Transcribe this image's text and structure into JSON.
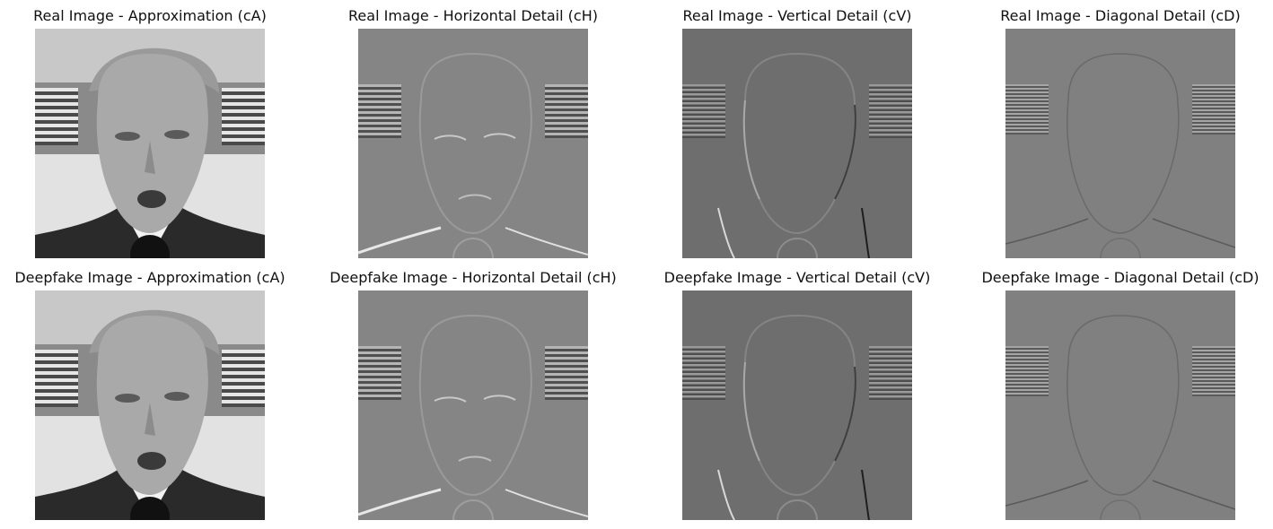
{
  "figure": {
    "rows": [
      {
        "name": "real",
        "panels": [
          {
            "title": "Real Image - Approximation (cA)",
            "kind": "approx"
          },
          {
            "title": "Real Image - Horizontal Detail (cH)",
            "kind": "horizontal"
          },
          {
            "title": "Real Image - Vertical Detail (cV)",
            "kind": "vertical"
          },
          {
            "title": "Real Image - Diagonal Detail (cD)",
            "kind": "diagonal"
          }
        ]
      },
      {
        "name": "deepfake",
        "panels": [
          {
            "title": "Deepfake Image - Approximation (cA)",
            "kind": "approx"
          },
          {
            "title": "Deepfake Image - Horizontal Detail (cH)",
            "kind": "horizontal"
          },
          {
            "title": "Deepfake Image - Vertical Detail (cV)",
            "kind": "vertical"
          },
          {
            "title": "Deepfake Image - Diagonal Detail (cD)",
            "kind": "diagonal"
          }
        ]
      }
    ],
    "colors": {
      "approx_bg": "#d9d9d9",
      "horizontal_bg": "#858585",
      "vertical_bg": "#6e6e6e",
      "diagonal_bg": "#808080"
    }
  }
}
